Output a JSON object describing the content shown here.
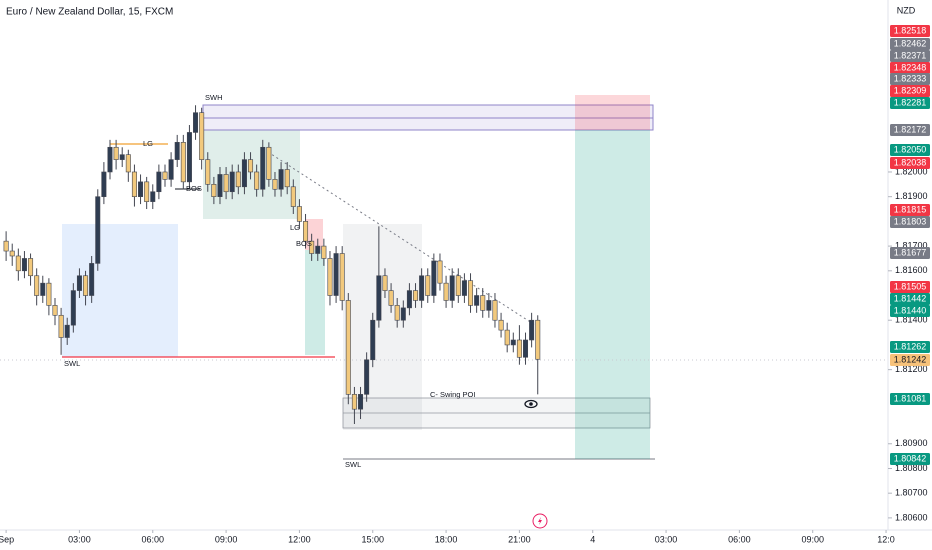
{
  "chart_data": {
    "type": "candlestick",
    "title": "Euro / New Zealand Dollar, 15, FXCM",
    "currency": "NZD",
    "xlim": [
      -0.25,
      36.08
    ],
    "ylim": [
      1.80551,
      1.82696
    ],
    "up_color": "#2f3d52",
    "down_color": "#f2c97d",
    "xticks": [
      {
        "value": 0,
        "label": "Sep"
      },
      {
        "value": 3,
        "label": "03:00"
      },
      {
        "value": 6,
        "label": "06:00"
      },
      {
        "value": 9,
        "label": "09:00"
      },
      {
        "value": 12,
        "label": "12:00"
      },
      {
        "value": 15,
        "label": "15:00"
      },
      {
        "value": 18,
        "label": "18:00"
      },
      {
        "value": 21,
        "label": "21:00"
      },
      {
        "value": 24,
        "label": "4"
      },
      {
        "value": 27,
        "label": "03:00"
      },
      {
        "value": 30,
        "label": "06:00"
      },
      {
        "value": 33,
        "label": "09:00"
      },
      {
        "value": 36,
        "label": "12:0"
      }
    ],
    "yticks": [
      {
        "value": 1.806,
        "label": "1.80600"
      },
      {
        "value": 1.807,
        "label": "1.80700"
      },
      {
        "value": 1.808,
        "label": "1.80800"
      },
      {
        "value": 1.809,
        "label": "1.80900"
      },
      {
        "value": 1.812,
        "label": "1.81200"
      },
      {
        "value": 1.814,
        "label": "1.81400"
      },
      {
        "value": 1.816,
        "label": "1.81600"
      },
      {
        "value": 1.817,
        "label": "1.81700"
      },
      {
        "value": 1.819,
        "label": "1.81900"
      },
      {
        "value": 1.82,
        "label": "1.82000"
      }
    ],
    "x": [
      0,
      0.25,
      0.5,
      0.75,
      1,
      1.25,
      1.5,
      1.75,
      2,
      2.25,
      2.5,
      2.75,
      3,
      3.25,
      3.5,
      3.75,
      4,
      4.25,
      4.5,
      4.75,
      5,
      5.25,
      5.5,
      5.75,
      6,
      6.25,
      6.5,
      6.75,
      7,
      7.25,
      7.5,
      7.75,
      8,
      8.25,
      8.5,
      8.75,
      9,
      9.25,
      9.5,
      9.75,
      10,
      10.25,
      10.5,
      10.75,
      11,
      11.25,
      11.5,
      11.75,
      12,
      12.25,
      12.5,
      12.75,
      13,
      13.25,
      13.5,
      13.75,
      14,
      14.25,
      14.5,
      14.75,
      15,
      15.25,
      15.5,
      15.75,
      16,
      16.25,
      16.5,
      16.75,
      17,
      17.25,
      17.5,
      17.75,
      18,
      18.25,
      18.5,
      18.75,
      19,
      19.25,
      19.5,
      19.75,
      20,
      20.25,
      20.5,
      20.75,
      21,
      21.25,
      21.5,
      21.75
    ],
    "open": [
      1.8172,
      1.8168,
      1.8166,
      1.816,
      1.8165,
      1.8158,
      1.815,
      1.8155,
      1.8146,
      1.8142,
      1.8133,
      1.8138,
      1.8152,
      1.8158,
      1.815,
      1.8163,
      1.819,
      1.82,
      1.821,
      1.8205,
      1.8207,
      1.82,
      1.819,
      1.8196,
      1.8188,
      1.8192,
      1.82,
      1.8197,
      1.8205,
      1.8212,
      1.8196,
      1.8216,
      1.8224,
      1.8205,
      1.8195,
      1.819,
      1.8199,
      1.8192,
      1.82,
      1.8194,
      1.8205,
      1.82,
      1.8193,
      1.821,
      1.8197,
      1.8193,
      1.8201,
      1.8194,
      1.8186,
      1.818,
      1.8172,
      1.8167,
      1.817,
      1.8165,
      1.815,
      1.8167,
      1.8148,
      1.811,
      1.8104,
      1.811,
      1.8124,
      1.814,
      1.8158,
      1.8152,
      1.8146,
      1.814,
      1.8145,
      1.8152,
      1.8148,
      1.8158,
      1.815,
      1.8164,
      1.8155,
      1.8148,
      1.8158,
      1.815,
      1.8156,
      1.8146,
      1.815,
      1.8144,
      1.8148,
      1.814,
      1.8136,
      1.813,
      1.8132,
      1.8125,
      1.8132,
      1.814
    ],
    "high": [
      1.8176,
      1.8171,
      1.8169,
      1.8168,
      1.8167,
      1.8161,
      1.8158,
      1.8157,
      1.8149,
      1.8145,
      1.8141,
      1.8155,
      1.8161,
      1.816,
      1.8166,
      1.8193,
      1.8204,
      1.8213,
      1.8213,
      1.821,
      1.8209,
      1.8203,
      1.8199,
      1.8198,
      1.8195,
      1.8203,
      1.8203,
      1.8208,
      1.8215,
      1.8215,
      1.8219,
      1.8227,
      1.8226,
      1.8208,
      1.8198,
      1.8202,
      1.8202,
      1.8203,
      1.8203,
      1.8208,
      1.8208,
      1.8203,
      1.8213,
      1.8212,
      1.82,
      1.8204,
      1.8204,
      1.8197,
      1.8189,
      1.8183,
      1.8175,
      1.8173,
      1.8173,
      1.8168,
      1.817,
      1.817,
      1.8151,
      1.8113,
      1.8113,
      1.8127,
      1.8143,
      1.8178,
      1.8161,
      1.8155,
      1.8149,
      1.8148,
      1.8155,
      1.8155,
      1.8161,
      1.8161,
      1.8167,
      1.8167,
      1.8158,
      1.8161,
      1.8161,
      1.8159,
      1.8159,
      1.8153,
      1.8153,
      1.8151,
      1.8151,
      1.8143,
      1.8139,
      1.8135,
      1.8138,
      1.8135,
      1.8143,
      1.8142
    ],
    "low": [
      1.8164,
      1.8162,
      1.8156,
      1.8157,
      1.8154,
      1.8146,
      1.8147,
      1.8142,
      1.8138,
      1.8126,
      1.813,
      1.8135,
      1.8149,
      1.8146,
      1.8147,
      1.816,
      1.8187,
      1.8197,
      1.8201,
      1.8202,
      1.8196,
      1.8186,
      1.8187,
      1.8185,
      1.8185,
      1.8189,
      1.8194,
      1.8194,
      1.8202,
      1.8193,
      1.8193,
      1.8213,
      1.8201,
      1.8192,
      1.8187,
      1.8187,
      1.8189,
      1.8189,
      1.8191,
      1.8191,
      1.8197,
      1.819,
      1.819,
      1.8194,
      1.819,
      1.819,
      1.8191,
      1.8183,
      1.8177,
      1.8169,
      1.8164,
      1.8164,
      1.8162,
      1.8146,
      1.8147,
      1.8144,
      1.8106,
      1.8098,
      1.81,
      1.8107,
      1.8121,
      1.8137,
      1.8149,
      1.8143,
      1.8137,
      1.8137,
      1.8142,
      1.8145,
      1.8145,
      1.8147,
      1.8147,
      1.8152,
      1.8145,
      1.8145,
      1.8147,
      1.8147,
      1.8143,
      1.8143,
      1.8141,
      1.8141,
      1.8137,
      1.8133,
      1.8127,
      1.8127,
      1.8122,
      1.8122,
      1.8129,
      1.811
    ],
    "close": [
      1.8168,
      1.8166,
      1.816,
      1.8165,
      1.8158,
      1.815,
      1.8155,
      1.8146,
      1.8142,
      1.8133,
      1.8138,
      1.8152,
      1.8158,
      1.815,
      1.8163,
      1.819,
      1.82,
      1.821,
      1.8205,
      1.8207,
      1.82,
      1.819,
      1.8196,
      1.8188,
      1.8192,
      1.82,
      1.8197,
      1.8205,
      1.8212,
      1.8196,
      1.8216,
      1.8224,
      1.8205,
      1.8195,
      1.819,
      1.8199,
      1.8192,
      1.82,
      1.8194,
      1.8205,
      1.82,
      1.8193,
      1.821,
      1.8197,
      1.8193,
      1.8201,
      1.8194,
      1.8186,
      1.818,
      1.8172,
      1.8167,
      1.817,
      1.8165,
      1.815,
      1.8167,
      1.8148,
      1.811,
      1.8104,
      1.811,
      1.8124,
      1.814,
      1.8158,
      1.8152,
      1.8146,
      1.814,
      1.8145,
      1.8152,
      1.8148,
      1.8158,
      1.815,
      1.8164,
      1.8155,
      1.8148,
      1.8158,
      1.815,
      1.8156,
      1.8146,
      1.815,
      1.8144,
      1.8148,
      1.814,
      1.8136,
      1.813,
      1.8132,
      1.8125,
      1.8132,
      1.814,
      1.81242
    ],
    "annotations": [
      "SWH",
      "LG",
      "BOS",
      "LG",
      "BOS",
      "SWL",
      "SWL",
      "C- Swing POI"
    ],
    "price_badges": [
      {
        "label": "1.82518",
        "color": "#f23645"
      },
      {
        "label": "1.82462",
        "color": "#787b86"
      },
      {
        "label": "1.82371",
        "color": "#787b86"
      },
      {
        "label": "1.82348",
        "color": "#f23645"
      },
      {
        "label": "1.82333",
        "color": "#787b86"
      },
      {
        "label": "1.82309",
        "color": "#f23645"
      },
      {
        "label": "1.82281",
        "color": "#089981"
      },
      {
        "label": "1.82172",
        "color": "#787b86"
      },
      {
        "label": "1.82050",
        "color": "#089981"
      },
      {
        "label": "1.82038",
        "color": "#f23645"
      },
      {
        "label": "1.81815",
        "color": "#f23645"
      },
      {
        "label": "1.81803",
        "color": "#787b86"
      },
      {
        "label": "1.81677",
        "color": "#787b86"
      },
      {
        "label": "1.81505",
        "color": "#f23645"
      },
      {
        "label": "1.81442",
        "color": "#089981"
      },
      {
        "label": "1.81440",
        "color": "#089981"
      },
      {
        "label": "1.81262",
        "color": "#089981"
      },
      {
        "label": "1.81242",
        "color": "#f7c27a"
      },
      {
        "label": "1.81081",
        "color": "#089981"
      },
      {
        "label": "1.80842",
        "color": "#089981"
      }
    ]
  }
}
